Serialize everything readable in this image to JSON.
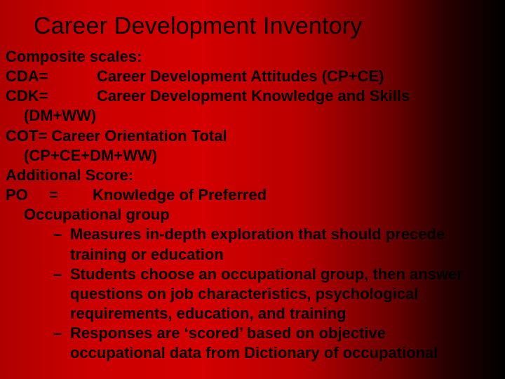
{
  "colors": {
    "text": "#000000",
    "gradient_stops": [
      "#b00000",
      "#cc0000",
      "#d40000",
      "#b80000",
      "#6a0000",
      "#2a0000",
      "#000000"
    ]
  },
  "typography": {
    "title_fontsize": 34,
    "body_fontsize": 22,
    "body_weight": "bold",
    "family": "Arial"
  },
  "title": "Career Development Inventory",
  "lines": {
    "l1": "Composite scales:",
    "l2a": "CDA=",
    "l2b": "Career Development Attitudes (CP+CE)",
    "l3a": "CDK=",
    "l3b": "Career Development Knowledge and  Skills",
    "l4": "(DM+WW)",
    "l5": "COT= Career Orientation Total",
    "l6": "(CP+CE+DM+WW)",
    "l7": "Additional Score:",
    "l8a": "PO",
    "l8b": "=",
    "l8c": "Knowledge of Preferred",
    "l9": "Occupational group"
  },
  "bullets": [
    "Measures in-depth exploration that should precede training or education",
    "Students choose an occupational group, then answer questions on job characteristics, psychological requirements, education, and training",
    "Responses are ‘scored’ based on objective occupational data from Dictionary of occupational"
  ],
  "dash": "–"
}
